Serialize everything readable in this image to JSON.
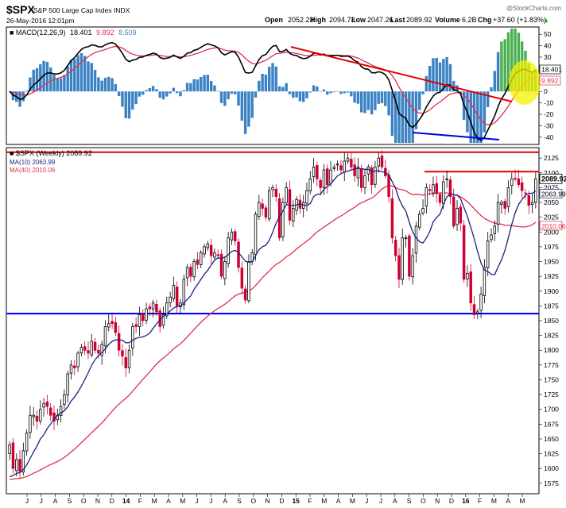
{
  "header": {
    "symbol": "$SPX",
    "name": "S&P 500 Large Cap Index INDX",
    "datetime": "26-May-2016 12:01pm",
    "open_label": "Open",
    "open": "2052.23",
    "high_label": "High",
    "high": "2094.73",
    "low_label": "Low",
    "low": "2047.26",
    "last_label": "Last",
    "last": "2089.92",
    "volume_label": "Volume",
    "volume": "6.2B",
    "chg_label": "Chg",
    "chg": "+37.60 (+1.83%)",
    "chg_arrow": "▲",
    "source": "@StockCharts.com"
  },
  "macd_panel": {
    "legend_prefix": "■ MACD(12,26,9)",
    "macd_value": "18.401",
    "signal_value": "9.892",
    "hist_value": "8.509",
    "badge_macd": "18.401",
    "badge_signal": "9.892",
    "y_ticks": [
      "50",
      "40",
      "30",
      "20",
      "10",
      "0",
      "-10",
      "-20",
      "-30",
      "-40"
    ]
  },
  "price_panel": {
    "legend_title": "■ $SPX (Weekly) 2089.92",
    "legend_ma10": "MA(10) 2063.99",
    "legend_ma40": "MA(40) 2010.06",
    "badge_last": "2089.92",
    "badge_ma10": "2063.99",
    "badge_ma40": "2010.06",
    "y_ticks": [
      "2125",
      "2100",
      "2075",
      "2050",
      "2025",
      "2000",
      "1975",
      "1950",
      "1925",
      "1900",
      "1875",
      "1850",
      "1825",
      "1800",
      "1775",
      "1750",
      "1725",
      "1700",
      "1675",
      "1650",
      "1625",
      "1600",
      "1575"
    ]
  },
  "x_labels": [
    "J",
    "J",
    "A",
    "S",
    "O",
    "N",
    "D",
    "14",
    "F",
    "M",
    "A",
    "M",
    "J",
    "J",
    "A",
    "S",
    "O",
    "N",
    "D",
    "15",
    "F",
    "M",
    "A",
    "M",
    "J",
    "J",
    "A",
    "S",
    "O",
    "N",
    "D",
    "16",
    "F",
    "M",
    "A",
    "M"
  ],
  "colors": {
    "up": "#000000",
    "down": "#cc0033",
    "ma10": "#1a237e",
    "ma40": "#e0304e",
    "macd": "#000000",
    "signal": "#e0304e",
    "hist_neg": "#3b82c4",
    "hist_pos": "#4caf50",
    "resistance": "#e00000",
    "support": "#0000ff",
    "highlight": "#f5f000"
  },
  "chart_data": {
    "type": "candlestick",
    "title": "$SPX S&P 500 Large Cap Index INDX (Weekly)",
    "x_axis_months": [
      "J",
      "J",
      "A",
      "S",
      "O",
      "N",
      "D",
      "14",
      "F",
      "M",
      "A",
      "M",
      "J",
      "J",
      "A",
      "S",
      "O",
      "N",
      "D",
      "15",
      "F",
      "M",
      "A",
      "M",
      "J",
      "J",
      "A",
      "S",
      "O",
      "N",
      "D",
      "16",
      "F",
      "M",
      "A",
      "M"
    ],
    "price_ylim": [
      1560,
      2140
    ],
    "macd_ylim": [
      -45,
      55
    ],
    "horizontal_levels": [
      {
        "value": 2135,
        "color": "#e00000"
      },
      {
        "value": 2102,
        "color": "#e00000"
      },
      {
        "value": 1862,
        "color": "#0000ff"
      }
    ],
    "weekly_close": [
      1640,
      1600,
      1615,
      1595,
      1630,
      1660,
      1690,
      1690,
      1680,
      1700,
      1710,
      1705,
      1690,
      1680,
      1690,
      1705,
      1725,
      1760,
      1775,
      1770,
      1795,
      1805,
      1800,
      1795,
      1815,
      1800,
      1795,
      1810,
      1840,
      1845,
      1845,
      1830,
      1800,
      1790,
      1770,
      1800,
      1840,
      1840,
      1860,
      1850,
      1870,
      1870,
      1880,
      1865,
      1840,
      1860,
      1880,
      1890,
      1910,
      1875,
      1880,
      1920,
      1940,
      1925,
      1950,
      1945,
      1965,
      1975,
      1980,
      1960,
      1965,
      1960,
      1925,
      1950,
      1990,
      2000,
      1985,
      1940,
      1905,
      1885,
      1950,
      1965,
      2030,
      2050,
      2040,
      2025,
      2070,
      2075,
      2060,
      1990,
      2050,
      2075,
      2020,
      2040,
      2055,
      2040,
      2050,
      2070,
      2090,
      2110,
      2090,
      2075,
      2105,
      2080,
      2105,
      2110,
      2115,
      2105,
      2120,
      2125,
      2110,
      2095,
      2110,
      2075,
      2095,
      2110,
      2080,
      2110,
      2125,
      2110,
      2095,
      2060,
      1990,
      1960,
      1920,
      1990,
      1990,
      1925,
      1960,
      2010,
      2030,
      2040,
      2075,
      2070,
      2080,
      2065,
      2050,
      2085,
      2090,
      2060,
      2010,
      2040,
      2015,
      1920,
      1930,
      1880,
      1860,
      1865,
      1895,
      1940,
      1985,
      1995,
      2010,
      2050,
      2050,
      2040,
      2075,
      2090,
      2090,
      2080,
      2070,
      2065,
      2045,
      2050,
      2090
    ],
    "ma10_label": "MA(10)",
    "ma10_last": 2063.99,
    "ma40_label": "MA(40)",
    "ma40_last": 2010.06,
    "macd_label": "MACD(12,26,9)",
    "macd_last": 18.401,
    "signal_last": 9.892,
    "histogram_last": 8.509
  }
}
